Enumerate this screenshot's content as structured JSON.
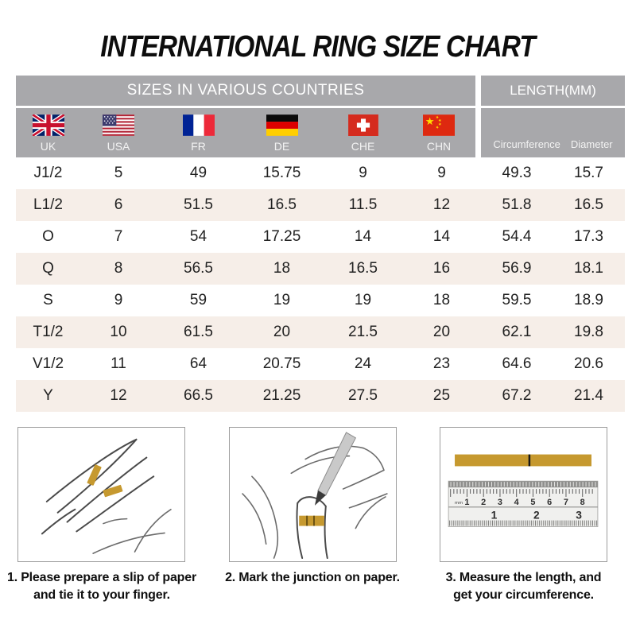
{
  "title": "INTERNATIONAL RING SIZE CHART",
  "table": {
    "group_headers": [
      {
        "label": "SIZES IN VARIOUS COUNTRIES"
      },
      {
        "label": "LENGTH(MM)"
      }
    ],
    "columns": [
      {
        "code": "UK",
        "flag": "uk-flag"
      },
      {
        "code": "USA",
        "flag": "usa-flag"
      },
      {
        "code": "FR",
        "flag": "france-flag"
      },
      {
        "code": "DE",
        "flag": "germany-flag"
      },
      {
        "code": "CHE",
        "flag": "switzerland-flag"
      },
      {
        "code": "CHN",
        "flag": "china-flag"
      }
    ],
    "length_columns": [
      "Circumference",
      "Diameter"
    ],
    "rows": [
      [
        "J1/2",
        "5",
        "49",
        "15.75",
        "9",
        "9",
        "49.3",
        "15.7"
      ],
      [
        "L1/2",
        "6",
        "51.5",
        "16.5",
        "11.5",
        "12",
        "51.8",
        "16.5"
      ],
      [
        "O",
        "7",
        "54",
        "17.25",
        "14",
        "14",
        "54.4",
        "17.3"
      ],
      [
        "Q",
        "8",
        "56.5",
        "18",
        "16.5",
        "16",
        "56.9",
        "18.1"
      ],
      [
        "S",
        "9",
        "59",
        "19",
        "19",
        "18",
        "59.5",
        "18.9"
      ],
      [
        "T1/2",
        "10",
        "61.5",
        "20",
        "21.5",
        "20",
        "62.1",
        "19.8"
      ],
      [
        "V1/2",
        "11",
        "64",
        "20.75",
        "24",
        "23",
        "64.6",
        "20.6"
      ],
      [
        "Y",
        "12",
        "66.5",
        "21.25",
        "27.5",
        "25",
        "67.2",
        "21.4"
      ]
    ]
  },
  "steps": [
    {
      "illustration": "hand-with-paper-slip",
      "caption_lines": [
        "1. Please prepare a slip of paper",
        "and tie it to your finger."
      ]
    },
    {
      "illustration": "mark-junction",
      "caption_lines": [
        "2. Mark the junction on paper."
      ]
    },
    {
      "illustration": "measure-with-ruler",
      "caption_lines": [
        "3. Measure the length, and",
        "get your circumference."
      ]
    }
  ],
  "ruler": {
    "unit_label": "mm",
    "cm_ticks": [
      "1",
      "2",
      "3",
      "4",
      "5",
      "6",
      "7",
      "8"
    ],
    "inch_ticks": [
      "1",
      "2",
      "3"
    ]
  },
  "colors": {
    "header_gray": "#a8a8ab",
    "row_beige": "#f6eee8",
    "paper_gold": "#c6992f",
    "text_black": "#1c1c1c",
    "white": "#ffffff"
  }
}
